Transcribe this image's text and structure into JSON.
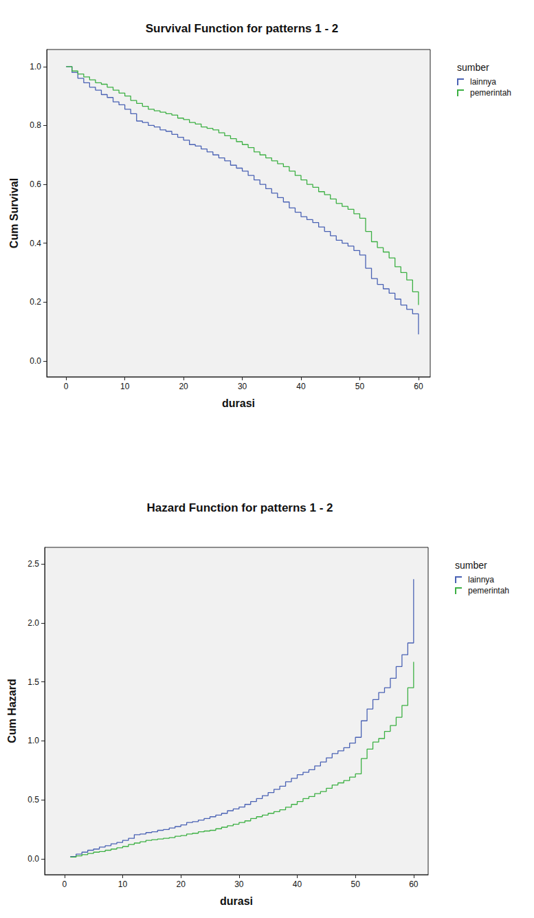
{
  "chart_data": [
    {
      "type": "step",
      "title": "Survival Function for patterns 1 - 2",
      "x_label": "durasi",
      "y_label": "Cum Survival",
      "legend": "right",
      "legend_title": "sumber",
      "grid": false,
      "xlim": [
        -3.3,
        62
      ],
      "xticks": [
        0,
        10,
        20,
        30,
        40,
        50,
        60
      ],
      "ylim": [
        -0.054,
        1.058
      ],
      "yticks": [
        {
          "value": 0,
          "label": "0.0"
        },
        {
          "value": 0.2,
          "label": "0.2"
        },
        {
          "value": 0.4,
          "label": "0.4"
        },
        {
          "value": 0.6,
          "label": "0.6"
        },
        {
          "value": 0.8,
          "label": "0.8"
        },
        {
          "value": 1,
          "label": "1.0"
        }
      ],
      "series": [
        {
          "name": "lainnya",
          "color": "#4a62b4",
          "x": [
            0,
            1,
            2,
            3,
            4,
            5,
            6,
            7,
            8,
            9,
            10,
            11,
            12,
            13,
            14,
            15,
            16,
            17,
            18,
            19,
            20,
            21,
            22,
            23,
            24,
            25,
            26,
            27,
            28,
            29,
            30,
            31,
            32,
            33,
            34,
            35,
            36,
            37,
            38,
            39,
            40,
            41,
            42,
            43,
            44,
            45,
            46,
            47,
            48,
            49,
            50,
            51,
            52,
            53,
            54,
            55,
            56,
            57,
            58,
            59,
            60,
            60
          ],
          "values": [
            1.0,
            0.98,
            0.96,
            0.945,
            0.93,
            0.92,
            0.905,
            0.895,
            0.88,
            0.87,
            0.855,
            0.84,
            0.815,
            0.81,
            0.8,
            0.795,
            0.785,
            0.78,
            0.77,
            0.76,
            0.75,
            0.735,
            0.73,
            0.72,
            0.71,
            0.7,
            0.69,
            0.68,
            0.665,
            0.655,
            0.645,
            0.63,
            0.615,
            0.6,
            0.585,
            0.57,
            0.555,
            0.54,
            0.52,
            0.505,
            0.49,
            0.48,
            0.47,
            0.455,
            0.44,
            0.425,
            0.41,
            0.4,
            0.39,
            0.375,
            0.36,
            0.315,
            0.28,
            0.26,
            0.245,
            0.23,
            0.21,
            0.19,
            0.175,
            0.16,
            0.125,
            0.09
          ]
        },
        {
          "name": "pemerintah",
          "color": "#3cb043",
          "x": [
            0,
            1,
            2,
            3,
            4,
            5,
            6,
            7,
            8,
            9,
            10,
            11,
            12,
            13,
            14,
            15,
            16,
            17,
            18,
            19,
            20,
            21,
            22,
            23,
            24,
            25,
            26,
            27,
            28,
            29,
            30,
            31,
            32,
            33,
            34,
            35,
            36,
            37,
            38,
            39,
            40,
            41,
            42,
            43,
            44,
            45,
            46,
            47,
            48,
            49,
            50,
            51,
            52,
            53,
            54,
            55,
            56,
            57,
            58,
            59,
            60,
            60
          ],
          "values": [
            1.0,
            0.985,
            0.975,
            0.965,
            0.955,
            0.945,
            0.94,
            0.93,
            0.92,
            0.91,
            0.9,
            0.885,
            0.875,
            0.865,
            0.855,
            0.85,
            0.845,
            0.84,
            0.835,
            0.825,
            0.82,
            0.81,
            0.805,
            0.795,
            0.79,
            0.785,
            0.775,
            0.765,
            0.755,
            0.745,
            0.735,
            0.725,
            0.71,
            0.7,
            0.69,
            0.68,
            0.67,
            0.66,
            0.645,
            0.63,
            0.615,
            0.6,
            0.59,
            0.575,
            0.565,
            0.55,
            0.535,
            0.525,
            0.515,
            0.5,
            0.485,
            0.44,
            0.405,
            0.385,
            0.37,
            0.35,
            0.32,
            0.3,
            0.275,
            0.235,
            0.235,
            0.19
          ]
        }
      ]
    },
    {
      "type": "step",
      "title": "Hazard Function for patterns 1 - 2",
      "x_label": "durasi",
      "y_label": "Cum Hazard",
      "legend": "right",
      "legend_title": "sumber",
      "grid": false,
      "xlim": [
        -3.4,
        62.5
      ],
      "xticks": [
        0,
        10,
        20,
        30,
        40,
        50,
        60
      ],
      "ylim": [
        -0.134,
        2.64
      ],
      "yticks": [
        {
          "value": 0,
          "label": "0.0"
        },
        {
          "value": 0.5,
          "label": "0.5"
        },
        {
          "value": 1,
          "label": "1.0"
        },
        {
          "value": 1.5,
          "label": "1.5"
        },
        {
          "value": 2,
          "label": "2.0"
        },
        {
          "value": 2.5,
          "label": "2.5"
        }
      ],
      "series": [
        {
          "name": "lainnya",
          "color": "#4a62b4",
          "x": [
            1,
            2,
            3,
            4,
            5,
            6,
            7,
            8,
            9,
            10,
            11,
            12,
            13,
            14,
            15,
            16,
            17,
            18,
            19,
            20,
            21,
            22,
            23,
            24,
            25,
            26,
            27,
            28,
            29,
            30,
            31,
            32,
            33,
            34,
            35,
            36,
            37,
            38,
            39,
            40,
            41,
            42,
            43,
            44,
            45,
            46,
            47,
            48,
            49,
            50,
            51,
            52,
            53,
            54,
            55,
            56,
            57,
            58,
            59,
            60,
            60
          ],
          "values": [
            0.02,
            0.04,
            0.057,
            0.073,
            0.083,
            0.1,
            0.111,
            0.128,
            0.139,
            0.157,
            0.174,
            0.205,
            0.211,
            0.223,
            0.229,
            0.242,
            0.248,
            0.261,
            0.274,
            0.288,
            0.308,
            0.315,
            0.329,
            0.342,
            0.357,
            0.371,
            0.386,
            0.408,
            0.423,
            0.439,
            0.462,
            0.486,
            0.511,
            0.536,
            0.562,
            0.589,
            0.616,
            0.654,
            0.683,
            0.713,
            0.734,
            0.755,
            0.788,
            0.821,
            0.856,
            0.892,
            0.916,
            0.942,
            0.981,
            1.03,
            1.17,
            1.27,
            1.35,
            1.41,
            1.45,
            1.53,
            1.63,
            1.73,
            1.83,
            2.06,
            2.37
          ]
        },
        {
          "name": "pemerintah",
          "color": "#3cb043",
          "x": [
            1,
            2,
            3,
            4,
            5,
            6,
            7,
            8,
            9,
            10,
            11,
            12,
            13,
            14,
            15,
            16,
            17,
            18,
            19,
            20,
            21,
            22,
            23,
            24,
            25,
            26,
            27,
            28,
            29,
            30,
            31,
            32,
            33,
            34,
            35,
            36,
            37,
            38,
            39,
            40,
            41,
            42,
            43,
            44,
            45,
            46,
            47,
            48,
            49,
            50,
            51,
            52,
            53,
            54,
            55,
            56,
            57,
            58,
            59,
            60
          ],
          "values": [
            0.015,
            0.025,
            0.036,
            0.046,
            0.057,
            0.062,
            0.073,
            0.083,
            0.094,
            0.105,
            0.122,
            0.134,
            0.145,
            0.157,
            0.163,
            0.168,
            0.174,
            0.18,
            0.192,
            0.198,
            0.211,
            0.217,
            0.229,
            0.236,
            0.242,
            0.255,
            0.268,
            0.281,
            0.294,
            0.308,
            0.322,
            0.342,
            0.357,
            0.371,
            0.386,
            0.4,
            0.416,
            0.438,
            0.462,
            0.486,
            0.511,
            0.528,
            0.553,
            0.571,
            0.598,
            0.626,
            0.644,
            0.664,
            0.693,
            0.72,
            0.85,
            0.93,
            0.99,
            1.02,
            1.08,
            1.13,
            1.2,
            1.3,
            1.45,
            1.67
          ]
        }
      ]
    }
  ]
}
